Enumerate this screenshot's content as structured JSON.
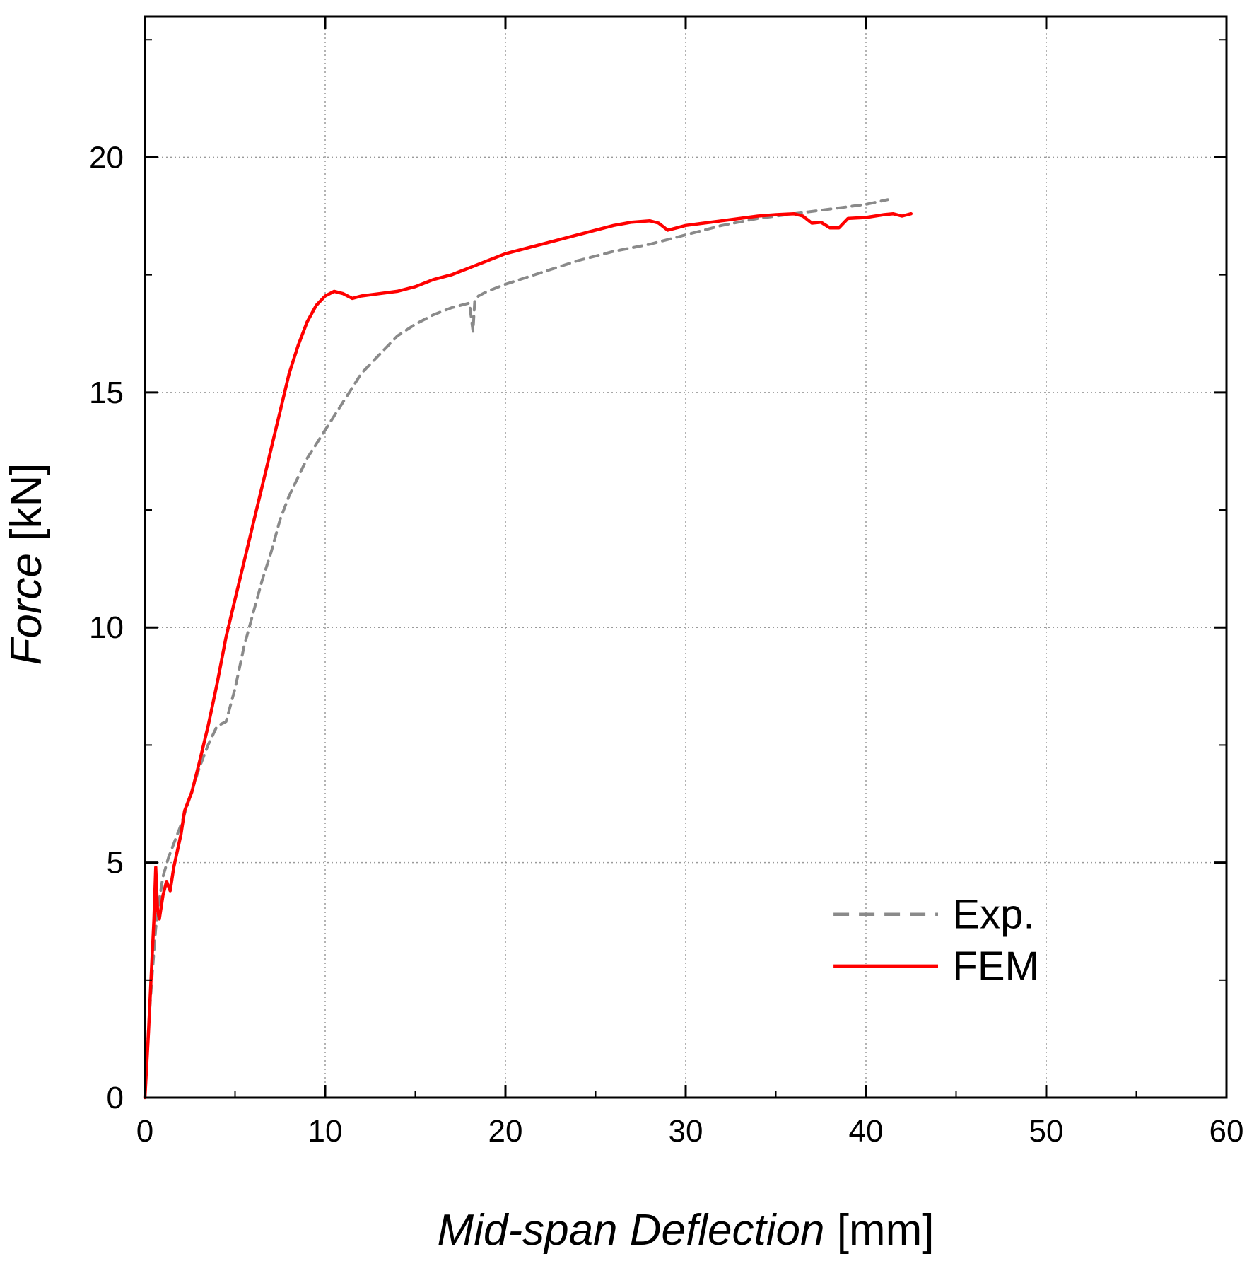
{
  "chart_data": {
    "type": "line",
    "title": "",
    "xlabel_italic": "Mid-span Deflection",
    "xlabel_unit": "[mm]",
    "ylabel_italic": "Force",
    "ylabel_unit": "[kN]",
    "xlim": [
      0,
      60
    ],
    "ylim": [
      0,
      23
    ],
    "x_ticks": [
      0,
      10,
      20,
      30,
      40,
      50,
      60
    ],
    "y_ticks": [
      0,
      5,
      10,
      15,
      20
    ],
    "x_tick_labels": [
      "0",
      "10",
      "20",
      "30",
      "40",
      "50",
      "60"
    ],
    "y_tick_labels": [
      "0",
      "5",
      "10",
      "15",
      "20"
    ],
    "grid": true,
    "legend_position": "bottom-right",
    "series": [
      {
        "name": "Exp.",
        "style": "dashed",
        "color": "#8a8a8a",
        "x": [
          0,
          0.2,
          0.4,
          0.6,
          0.8,
          1.0,
          1.3,
          1.6,
          2.0,
          2.5,
          3.0,
          3.5,
          4.0,
          4.5,
          5.0,
          5.5,
          6.0,
          6.5,
          7.0,
          7.5,
          8.0,
          8.5,
          9.0,
          9.5,
          10.0,
          10.5,
          11.0,
          11.5,
          12.0,
          13.0,
          14.0,
          15.0,
          16.0,
          17.0,
          18.0,
          18.2,
          18.3,
          18.5,
          19.0,
          20.0,
          22.0,
          24.0,
          26.0,
          28.0,
          30.0,
          32.0,
          34.0,
          36.0,
          38.0,
          40.0,
          41.2
        ],
        "y": [
          0,
          1.5,
          2.6,
          3.6,
          4.2,
          4.7,
          5.1,
          5.4,
          5.8,
          6.4,
          7.0,
          7.5,
          7.9,
          8.0,
          8.7,
          9.6,
          10.3,
          11.0,
          11.6,
          12.3,
          12.8,
          13.2,
          13.6,
          13.9,
          14.2,
          14.5,
          14.8,
          15.1,
          15.4,
          15.8,
          16.2,
          16.45,
          16.65,
          16.8,
          16.9,
          16.3,
          16.95,
          17.05,
          17.15,
          17.3,
          17.55,
          17.8,
          18.0,
          18.15,
          18.35,
          18.55,
          18.7,
          18.8,
          18.9,
          19.0,
          19.1
        ]
      },
      {
        "name": "FEM",
        "style": "solid",
        "color": "#ff0000",
        "x": [
          0,
          0.2,
          0.35,
          0.5,
          0.6,
          0.7,
          0.8,
          1.0,
          1.2,
          1.4,
          1.6,
          2.0,
          2.2,
          2.6,
          3.0,
          3.5,
          4.0,
          4.5,
          5.0,
          5.5,
          6.0,
          6.5,
          7.0,
          7.5,
          8.0,
          8.5,
          9.0,
          9.5,
          10.0,
          10.5,
          11.0,
          11.5,
          12.0,
          13.0,
          14.0,
          15.0,
          16.0,
          17.0,
          18.0,
          19.0,
          20.0,
          21.0,
          22.0,
          24.0,
          26.0,
          27.0,
          28.0,
          28.5,
          29.0,
          29.5,
          30.0,
          31.0,
          32.0,
          33.0,
          34.0,
          35.0,
          36.0,
          36.5,
          37.0,
          37.5,
          38.0,
          38.5,
          39.0,
          40.0,
          41.0,
          41.5,
          42.0,
          42.5
        ],
        "y": [
          0,
          1.4,
          2.6,
          3.8,
          4.9,
          4.0,
          3.8,
          4.3,
          4.6,
          4.4,
          4.9,
          5.6,
          6.1,
          6.5,
          7.1,
          7.9,
          8.8,
          9.8,
          10.6,
          11.4,
          12.2,
          13.0,
          13.8,
          14.6,
          15.4,
          16.0,
          16.5,
          16.85,
          17.05,
          17.15,
          17.1,
          17.0,
          17.05,
          17.1,
          17.15,
          17.25,
          17.4,
          17.5,
          17.65,
          17.8,
          17.95,
          18.05,
          18.15,
          18.35,
          18.55,
          18.62,
          18.65,
          18.6,
          18.45,
          18.5,
          18.55,
          18.6,
          18.65,
          18.7,
          18.75,
          18.78,
          18.8,
          18.75,
          18.6,
          18.62,
          18.5,
          18.5,
          18.7,
          18.72,
          18.78,
          18.8,
          18.75,
          18.8
        ]
      }
    ]
  }
}
